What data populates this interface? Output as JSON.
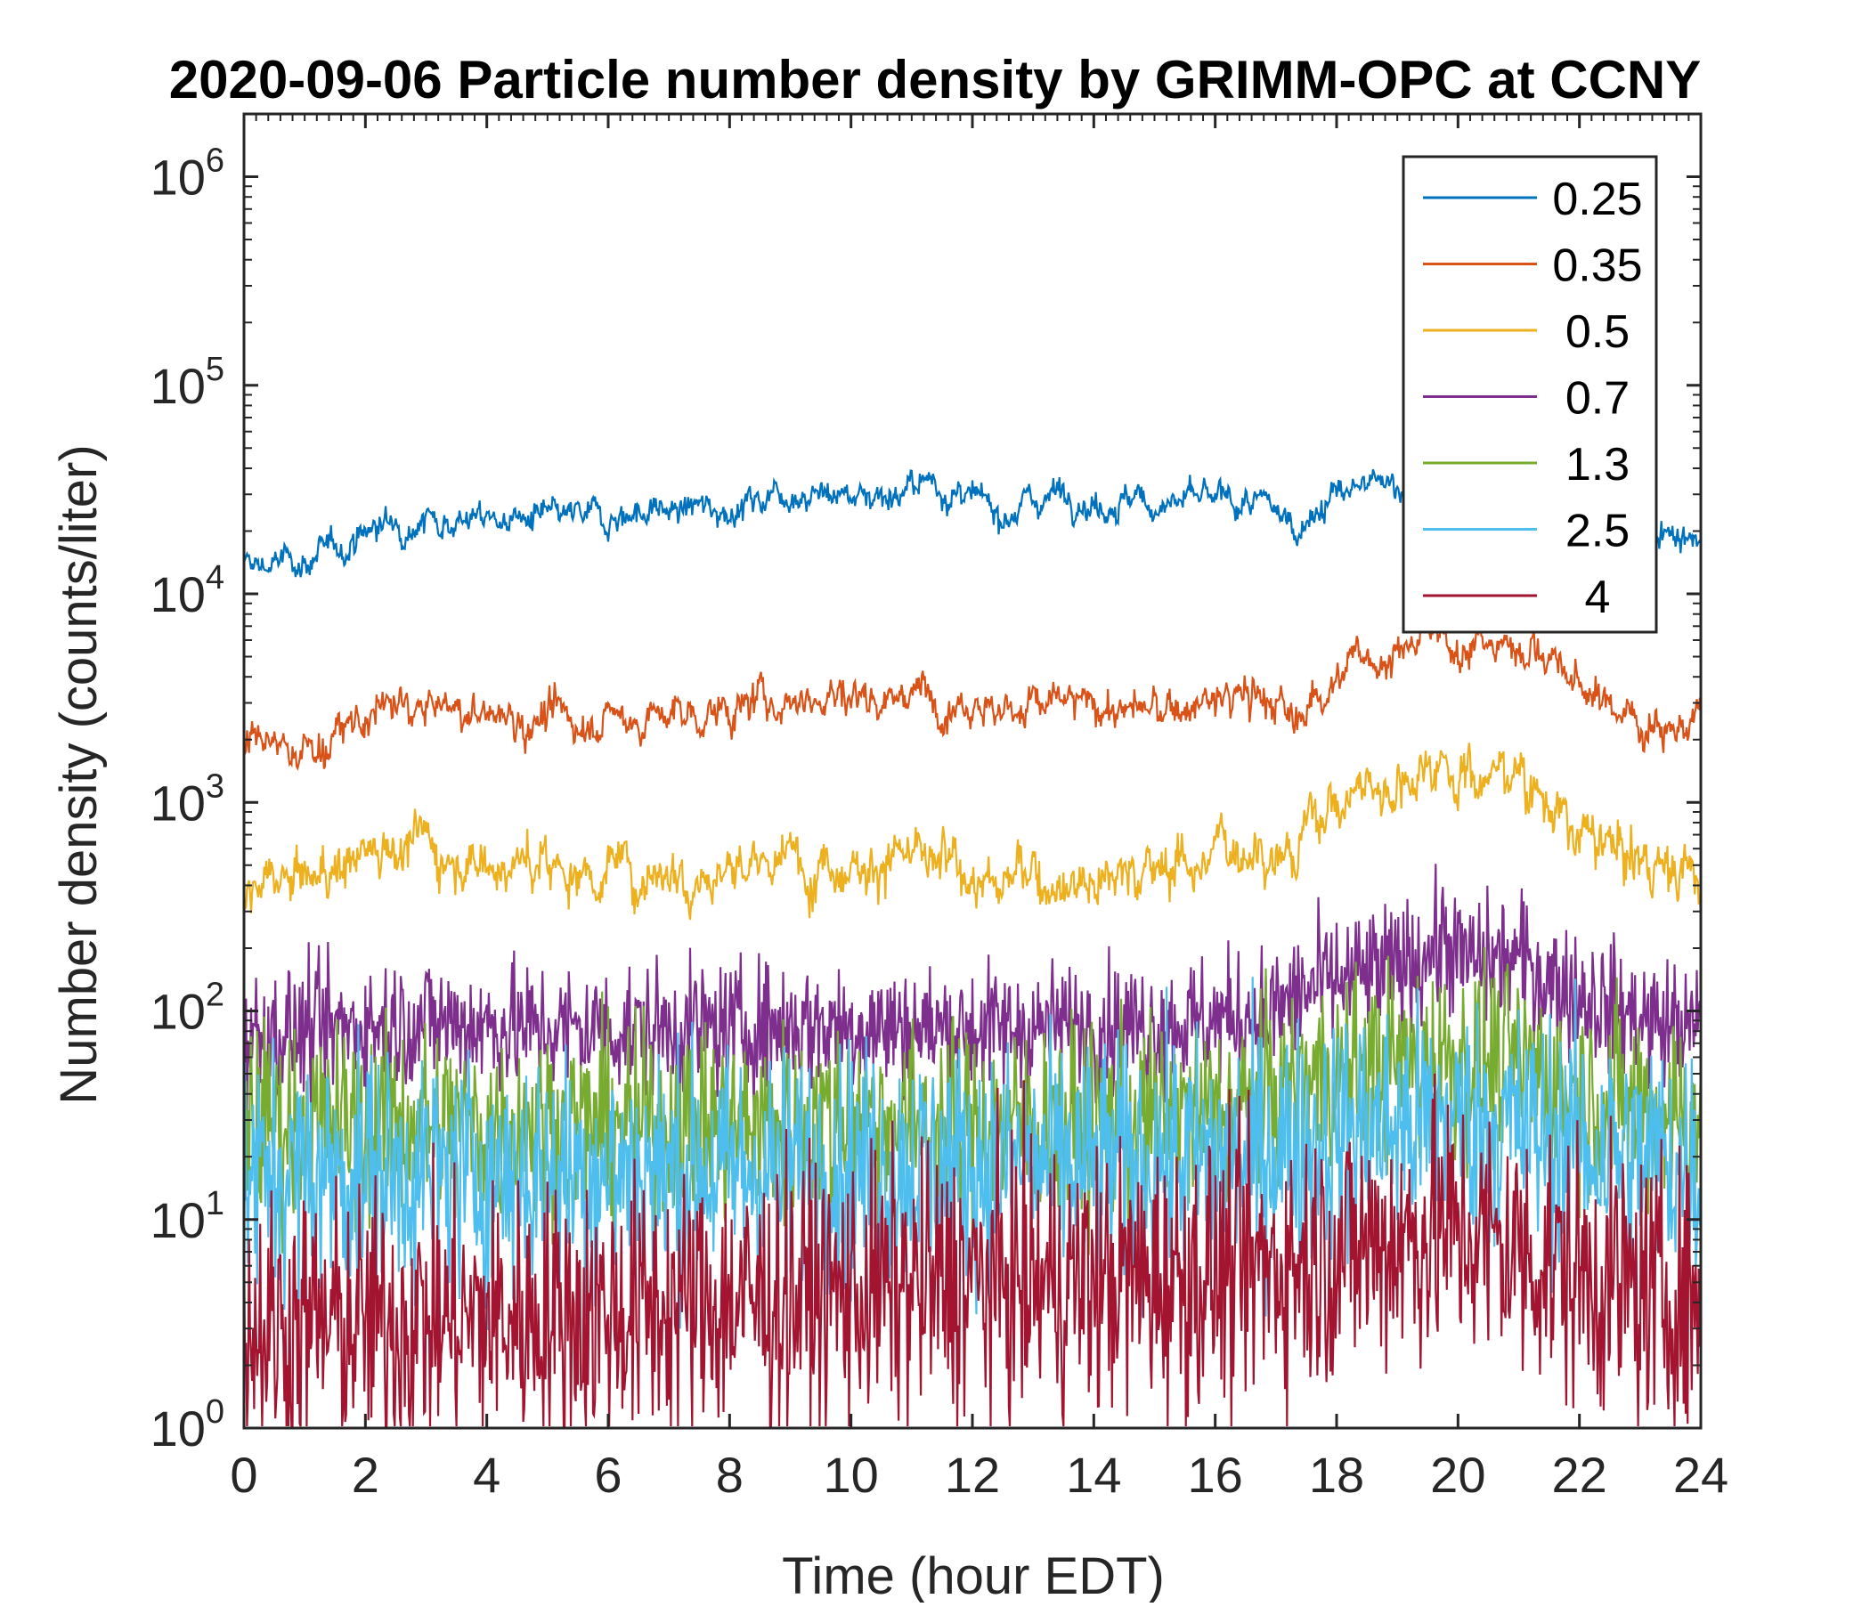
{
  "chart_data": {
    "type": "line",
    "title": "2020-09-06 Particle number density by GRIMM-OPC at CCNY",
    "xlabel": "Time (hour EDT)",
    "ylabel": "Number density (counts/liter)",
    "xlim": [
      0,
      24
    ],
    "ylim": [
      1,
      2000000
    ],
    "yscale": "log",
    "x_ticks": [
      0,
      2,
      4,
      6,
      8,
      10,
      12,
      14,
      16,
      18,
      20,
      22,
      24
    ],
    "x_tick_labels": [
      "0",
      "2",
      "4",
      "6",
      "8",
      "10",
      "12",
      "14",
      "16",
      "18",
      "20",
      "22",
      "24"
    ],
    "y_ticks": [
      1,
      10,
      100,
      1000,
      10000,
      100000,
      1000000
    ],
    "y_tick_labels": [
      {
        "base": "10",
        "exp": "0"
      },
      {
        "base": "10",
        "exp": "1"
      },
      {
        "base": "10",
        "exp": "2"
      },
      {
        "base": "10",
        "exp": "3"
      },
      {
        "base": "10",
        "exp": "4"
      },
      {
        "base": "10",
        "exp": "5"
      },
      {
        "base": "10",
        "exp": "6"
      }
    ],
    "legend_position": "top-right",
    "series": [
      {
        "name": "0.25",
        "color": "#0072BD",
        "x": [
          0,
          0.5,
          1,
          1.5,
          2,
          2.5,
          3,
          4,
          5,
          6,
          6.5,
          7,
          8,
          8.5,
          8.7,
          9,
          10,
          11,
          11.3,
          11.7,
          12,
          12.5,
          13,
          13.5,
          14,
          14.5,
          15,
          16,
          16.5,
          17,
          17.3,
          17.7,
          18,
          18.5,
          19,
          19.5,
          20,
          20.5,
          21,
          21.5,
          22,
          23,
          23.5,
          24
        ],
        "values": [
          13500,
          14000,
          14500,
          16000,
          20000,
          22000,
          23000,
          23000,
          22500,
          23500,
          25000,
          25000,
          26000,
          28000,
          32000,
          31000,
          30000,
          31000,
          35000,
          30000,
          27000,
          25000,
          28000,
          32000,
          27000,
          28000,
          27000,
          28000,
          27000,
          25000,
          21000,
          26000,
          30000,
          32000,
          34000,
          33000,
          32000,
          30000,
          28000,
          26000,
          24000,
          21000,
          20000,
          19000
        ],
        "noise": 0.06
      },
      {
        "name": "0.35",
        "color": "#D95319",
        "x": [
          0,
          0.5,
          1,
          1.5,
          2,
          2.5,
          3,
          4,
          5,
          6,
          7,
          8,
          8.5,
          9,
          10,
          11,
          12,
          12.5,
          13,
          14,
          15,
          16,
          16.5,
          17,
          17.3,
          17.7,
          18,
          18.5,
          19,
          19.5,
          20,
          20.5,
          21,
          21.5,
          22,
          23,
          24
        ],
        "values": [
          1800,
          1800,
          1800,
          2000,
          2500,
          2900,
          2800,
          2600,
          2500,
          2500,
          2600,
          2700,
          3000,
          3200,
          3300,
          3300,
          3200,
          2700,
          3000,
          2900,
          2700,
          3000,
          3300,
          3000,
          2300,
          3500,
          4000,
          5000,
          5200,
          6000,
          6000,
          5500,
          6000,
          5000,
          3500,
          2500,
          2300
        ],
        "noise": 0.08
      },
      {
        "name": "0.5",
        "color": "#EDB120",
        "x": [
          0,
          0.5,
          1,
          1.5,
          2,
          2.5,
          3,
          3.5,
          4,
          5,
          6,
          7,
          8,
          9,
          10,
          11,
          12,
          12.5,
          13,
          14,
          15,
          16,
          16.5,
          17,
          17.3,
          17.6,
          18,
          18.5,
          19,
          19.5,
          19.8,
          20,
          20.5,
          21,
          21.5,
          22,
          23,
          24
        ],
        "values": [
          380,
          390,
          420,
          480,
          600,
          660,
          640,
          560,
          520,
          480,
          480,
          480,
          470,
          520,
          540,
          520,
          460,
          400,
          450,
          440,
          480,
          560,
          650,
          600,
          520,
          900,
          1000,
          1200,
          1250,
          1500,
          1800,
          1400,
          1300,
          1500,
          1000,
          650,
          550,
          420
        ],
        "noise": 0.11
      },
      {
        "name": "0.7",
        "color": "#7E2F8E",
        "x": [
          0,
          1,
          2,
          3,
          4,
          5,
          6,
          7,
          8,
          9,
          10,
          11,
          12,
          13,
          14,
          15,
          16,
          17,
          17.5,
          18,
          18.5,
          19,
          19.5,
          19.8,
          20,
          20.5,
          21,
          21.5,
          22,
          23,
          24
        ],
        "values": [
          75,
          80,
          85,
          90,
          85,
          82,
          82,
          82,
          82,
          85,
          85,
          82,
          82,
          82,
          85,
          85,
          90,
          100,
          125,
          140,
          150,
          160,
          190,
          220,
          180,
          170,
          180,
          140,
          120,
          90,
          80
        ],
        "noise": 0.16
      },
      {
        "name": "1.3",
        "color": "#77AC30",
        "x": [
          0,
          1,
          2,
          4,
          6,
          8,
          10,
          12,
          14,
          16,
          17,
          17.5,
          18,
          19,
          19.8,
          20.5,
          21,
          22,
          23,
          24
        ],
        "values": [
          30,
          28,
          30,
          28,
          28,
          28,
          30,
          28,
          28,
          32,
          38,
          45,
          50,
          55,
          60,
          55,
          55,
          40,
          35,
          32
        ],
        "noise": 0.24
      },
      {
        "name": "2.5",
        "color": "#4DBEEE",
        "x": [
          0,
          1,
          2,
          4,
          6,
          8,
          10,
          12,
          14,
          16,
          17,
          18,
          19,
          19.8,
          20.5,
          21,
          22,
          23,
          24
        ],
        "values": [
          16,
          16,
          17,
          16,
          17,
          17,
          18,
          18,
          18,
          20,
          22,
          26,
          28,
          30,
          28,
          28,
          22,
          20,
          18
        ],
        "noise": 0.3
      },
      {
        "name": "4",
        "color": "#A2142F",
        "x": [
          0,
          2,
          4,
          6,
          8,
          10,
          12,
          14,
          16,
          17,
          18,
          19,
          19.8,
          20.5,
          21,
          22,
          23,
          24
        ],
        "values": [
          3,
          3.2,
          3.3,
          3.6,
          4,
          4.5,
          5,
          5,
          5.5,
          6,
          7,
          8,
          9,
          8,
          7,
          5.5,
          4.5,
          4
        ],
        "noise": 0.33
      }
    ]
  }
}
